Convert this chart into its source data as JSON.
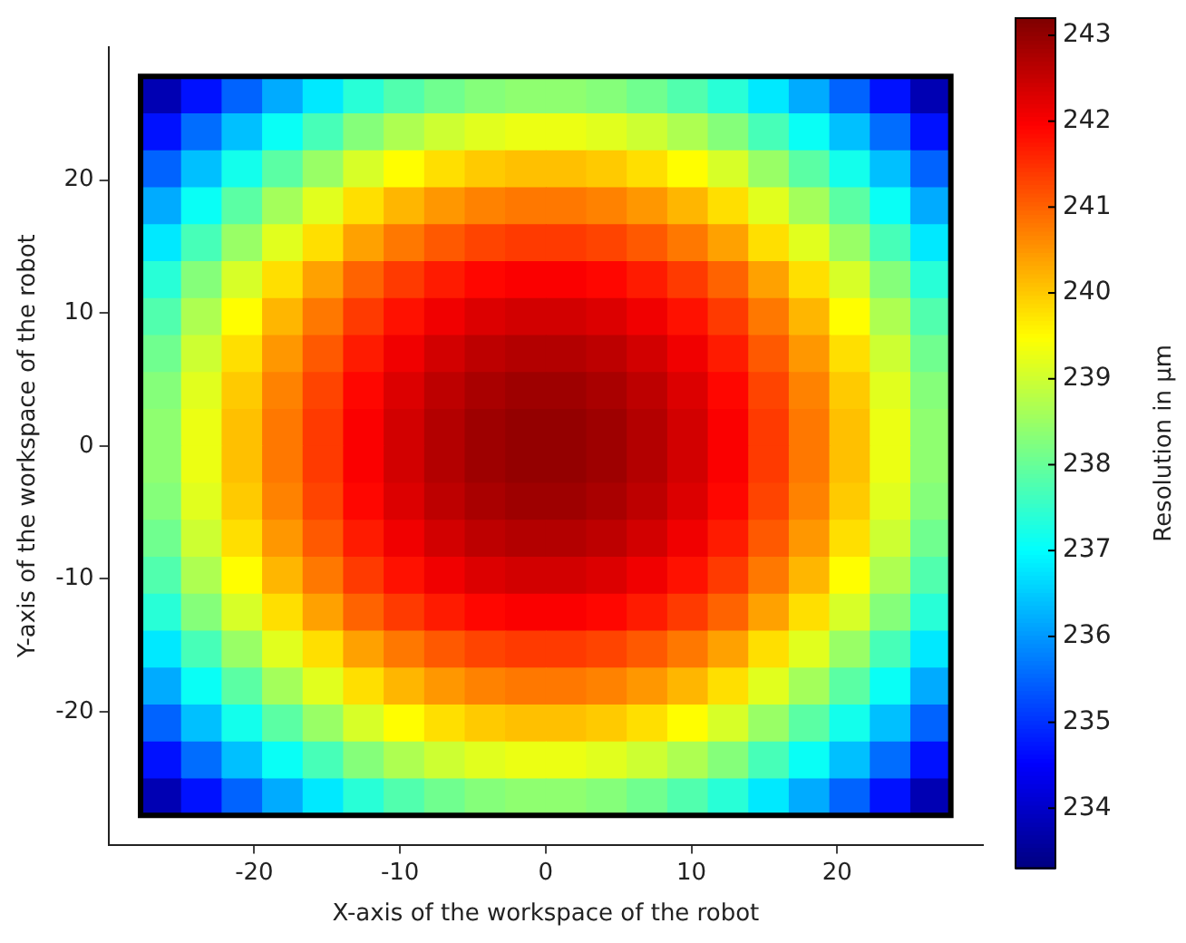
{
  "chart_data": {
    "type": "heatmap",
    "xlabel": "X-axis of the workspace of the robot",
    "ylabel": "Y-axis of the workspace of the robot",
    "clabel": "Resolution in µm",
    "x": [
      -26.41,
      -23.63,
      -20.85,
      -18.07,
      -15.29,
      -12.51,
      -9.73,
      -6.95,
      -4.17,
      -1.39,
      1.39,
      4.17,
      6.95,
      9.73,
      12.51,
      15.29,
      18.07,
      20.85,
      23.63,
      26.41
    ],
    "y": [
      26.41,
      23.63,
      20.85,
      18.07,
      15.29,
      12.51,
      9.73,
      6.95,
      4.17,
      1.39,
      -1.39,
      -4.17,
      -6.95,
      -9.73,
      -12.51,
      -15.29,
      -18.07,
      -20.85,
      -23.63,
      -26.41
    ],
    "xlim": [
      -30,
      30
    ],
    "ylim": [
      -30,
      30
    ],
    "xticks": [
      -20,
      -10,
      0,
      10,
      20
    ],
    "yticks": [
      -20,
      -10,
      0,
      10,
      20
    ],
    "clim": [
      233.3,
      243.2
    ],
    "cticks": [
      234,
      235,
      236,
      237,
      238,
      239,
      240,
      241,
      242,
      243
    ],
    "grid": false,
    "cells": [
      [
        233.8,
        234.7,
        235.5,
        236.2,
        236.8,
        237.4,
        237.8,
        238.1,
        238.3,
        238.4,
        238.4,
        238.3,
        238.1,
        237.8,
        237.4,
        236.8,
        236.2,
        235.5,
        234.7,
        233.8
      ],
      [
        234.7,
        235.6,
        236.4,
        237.1,
        237.7,
        238.3,
        238.7,
        239.0,
        239.2,
        239.3,
        239.3,
        239.2,
        239.0,
        238.7,
        238.3,
        237.7,
        237.1,
        236.4,
        235.6,
        234.7
      ],
      [
        235.5,
        236.4,
        237.2,
        237.9,
        238.5,
        239.1,
        239.5,
        239.8,
        240.0,
        240.1,
        240.1,
        240.0,
        239.8,
        239.5,
        239.1,
        238.5,
        237.9,
        237.2,
        236.4,
        235.5
      ],
      [
        236.2,
        237.1,
        237.9,
        238.6,
        239.2,
        239.8,
        240.2,
        240.5,
        240.7,
        240.8,
        240.8,
        240.7,
        240.5,
        240.2,
        239.8,
        239.2,
        238.6,
        237.9,
        237.1,
        236.2
      ],
      [
        236.8,
        237.7,
        238.5,
        239.2,
        239.8,
        240.4,
        240.8,
        241.1,
        241.3,
        241.4,
        241.4,
        241.3,
        241.1,
        240.8,
        240.4,
        239.8,
        239.2,
        238.5,
        237.7,
        236.8
      ],
      [
        237.4,
        238.3,
        239.1,
        239.8,
        240.4,
        241.0,
        241.4,
        241.7,
        241.9,
        242.0,
        242.0,
        241.9,
        241.7,
        241.4,
        241.0,
        240.4,
        239.8,
        239.1,
        238.3,
        237.4
      ],
      [
        237.8,
        238.7,
        239.5,
        240.2,
        240.8,
        241.4,
        241.8,
        242.1,
        242.3,
        242.4,
        242.4,
        242.3,
        242.1,
        241.8,
        241.4,
        240.8,
        240.2,
        239.5,
        238.7,
        237.8
      ],
      [
        238.1,
        239.0,
        239.8,
        240.5,
        241.1,
        241.7,
        242.1,
        242.4,
        242.6,
        242.7,
        242.7,
        242.6,
        242.4,
        242.1,
        241.7,
        241.1,
        240.5,
        239.8,
        239.0,
        238.1
      ],
      [
        238.3,
        239.2,
        240.0,
        240.7,
        241.3,
        241.9,
        242.3,
        242.6,
        242.8,
        242.9,
        242.9,
        242.8,
        242.6,
        242.3,
        241.9,
        241.3,
        240.7,
        240.0,
        239.2,
        238.3
      ],
      [
        238.4,
        239.3,
        240.1,
        240.8,
        241.4,
        242.0,
        242.4,
        242.7,
        242.9,
        243.0,
        243.0,
        242.9,
        242.7,
        242.4,
        242.0,
        241.4,
        240.8,
        240.1,
        239.3,
        238.4
      ],
      [
        238.4,
        239.3,
        240.1,
        240.8,
        241.4,
        242.0,
        242.4,
        242.7,
        242.9,
        243.0,
        243.0,
        242.9,
        242.7,
        242.4,
        242.0,
        241.4,
        240.8,
        240.1,
        239.3,
        238.4
      ],
      [
        238.3,
        239.2,
        240.0,
        240.7,
        241.3,
        241.9,
        242.3,
        242.6,
        242.8,
        242.9,
        242.9,
        242.8,
        242.6,
        242.3,
        241.9,
        241.3,
        240.7,
        240.0,
        239.2,
        238.3
      ],
      [
        238.1,
        239.0,
        239.8,
        240.5,
        241.1,
        241.7,
        242.1,
        242.4,
        242.6,
        242.7,
        242.7,
        242.6,
        242.4,
        242.1,
        241.7,
        241.1,
        240.5,
        239.8,
        239.0,
        238.1
      ],
      [
        237.8,
        238.7,
        239.5,
        240.2,
        240.8,
        241.4,
        241.8,
        242.1,
        242.3,
        242.4,
        242.4,
        242.3,
        242.1,
        241.8,
        241.4,
        240.8,
        240.2,
        239.5,
        238.7,
        237.8
      ],
      [
        237.4,
        238.3,
        239.1,
        239.8,
        240.4,
        241.0,
        241.4,
        241.7,
        241.9,
        242.0,
        242.0,
        241.9,
        241.7,
        241.4,
        241.0,
        240.4,
        239.8,
        239.1,
        238.3,
        237.4
      ],
      [
        236.8,
        237.7,
        238.5,
        239.2,
        239.8,
        240.4,
        240.8,
        241.1,
        241.3,
        241.4,
        241.4,
        241.3,
        241.1,
        240.8,
        240.4,
        239.8,
        239.2,
        238.5,
        237.7,
        236.8
      ],
      [
        236.2,
        237.1,
        237.9,
        238.6,
        239.2,
        239.8,
        240.2,
        240.5,
        240.7,
        240.8,
        240.8,
        240.7,
        240.5,
        240.2,
        239.8,
        239.2,
        238.6,
        237.9,
        237.1,
        236.2
      ],
      [
        235.5,
        236.4,
        237.2,
        237.9,
        238.5,
        239.1,
        239.5,
        239.8,
        240.0,
        240.1,
        240.1,
        240.0,
        239.8,
        239.5,
        239.1,
        238.5,
        237.9,
        237.2,
        236.4,
        235.5
      ],
      [
        234.7,
        235.6,
        236.4,
        237.1,
        237.7,
        238.3,
        238.7,
        239.0,
        239.2,
        239.3,
        239.3,
        239.2,
        239.0,
        238.7,
        238.3,
        237.7,
        237.1,
        236.4,
        235.6,
        234.7
      ],
      [
        233.8,
        234.7,
        235.5,
        236.2,
        236.8,
        237.4,
        237.8,
        238.1,
        238.3,
        238.4,
        238.4,
        238.3,
        238.1,
        237.8,
        237.4,
        236.8,
        236.2,
        235.5,
        234.7,
        233.8
      ]
    ]
  }
}
